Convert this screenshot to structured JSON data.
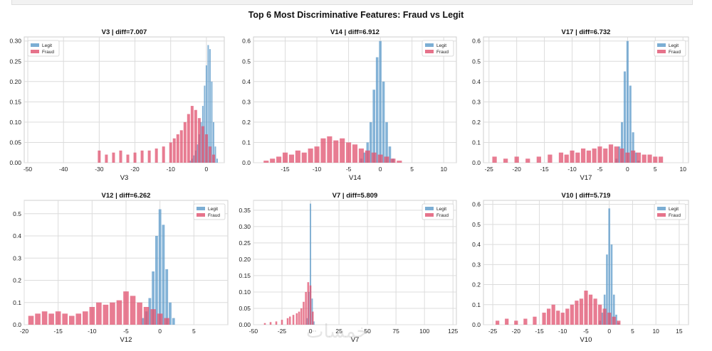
{
  "figure": {
    "suptitle": "Top 6 Most Discriminative Features: Fraud vs Legit",
    "colors": {
      "legit": "#5b9ac9",
      "fraud": "#e0506e"
    }
  },
  "chart_data": [
    {
      "type": "bar",
      "title": "V3  |  diff=7.007",
      "xlabel": "V3",
      "ylabel": "",
      "xlim": [
        -51,
        5
      ],
      "ylim": [
        0,
        0.31
      ],
      "xticks": [
        -50,
        -40,
        -30,
        -20,
        -10,
        0
      ],
      "yticks": [
        0,
        0.05,
        0.1,
        0.15,
        0.2,
        0.25,
        0.3
      ],
      "ytick_labels": [
        "0.00",
        "0.05",
        "0.10",
        "0.15",
        "0.20",
        "0.25",
        "0.30"
      ],
      "legend": [
        "Legit",
        "Fraud"
      ],
      "legend_loc": "upper-left",
      "series": [
        {
          "name": "Legit",
          "x": [
            -4.5,
            -4.0,
            -3.5,
            -3.0,
            -2.5,
            -2.0,
            -1.5,
            -1.0,
            -0.5,
            0.0,
            0.5,
            1.0,
            1.5,
            2.0,
            2.5,
            3.0
          ],
          "values": [
            0.005,
            0.01,
            0.018,
            0.03,
            0.045,
            0.07,
            0.1,
            0.14,
            0.19,
            0.24,
            0.29,
            0.28,
            0.2,
            0.1,
            0.04,
            0.01
          ]
        },
        {
          "name": "Fraud",
          "x": [
            -30,
            -28,
            -26,
            -24,
            -22,
            -20,
            -18,
            -16,
            -14,
            -12,
            -10,
            -9,
            -8,
            -7,
            -6,
            -5,
            -4,
            -3,
            -2,
            -1,
            0,
            1,
            2
          ],
          "values": [
            0.03,
            0.02,
            0.025,
            0.03,
            0.02,
            0.025,
            0.03,
            0.03,
            0.035,
            0.04,
            0.05,
            0.06,
            0.07,
            0.08,
            0.1,
            0.12,
            0.14,
            0.13,
            0.11,
            0.09,
            0.07,
            0.04,
            0.02
          ]
        }
      ]
    },
    {
      "type": "bar",
      "title": "V14  |  diff=6.912",
      "xlabel": "V14",
      "ylabel": "",
      "xlim": [
        -20,
        12
      ],
      "ylim": [
        0,
        0.62
      ],
      "xticks": [
        -15,
        -10,
        -5,
        0,
        5,
        10
      ],
      "yticks": [
        0,
        0.1,
        0.2,
        0.3,
        0.4,
        0.5,
        0.6
      ],
      "ytick_labels": [
        "0.0",
        "0.1",
        "0.2",
        "0.3",
        "0.4",
        "0.5",
        "0.6"
      ],
      "legend": [
        "Legit",
        "Fraud"
      ],
      "legend_loc": "upper-right",
      "series": [
        {
          "name": "Legit",
          "x": [
            -3.0,
            -2.5,
            -2.0,
            -1.5,
            -1.0,
            -0.5,
            0.0,
            0.5,
            1.0,
            1.5,
            2.0
          ],
          "values": [
            0.02,
            0.05,
            0.1,
            0.2,
            0.36,
            0.52,
            0.6,
            0.4,
            0.2,
            0.08,
            0.02
          ]
        },
        {
          "name": "Fraud",
          "x": [
            -18,
            -17,
            -16,
            -15,
            -14,
            -13,
            -12,
            -11,
            -10,
            -9,
            -8,
            -7,
            -6,
            -5,
            -4,
            -3,
            -2,
            -1,
            0,
            1,
            2,
            3
          ],
          "values": [
            0.01,
            0.02,
            0.03,
            0.05,
            0.04,
            0.06,
            0.05,
            0.07,
            0.08,
            0.12,
            0.13,
            0.11,
            0.12,
            0.1,
            0.09,
            0.07,
            0.06,
            0.05,
            0.04,
            0.03,
            0.02,
            0.01
          ]
        }
      ]
    },
    {
      "type": "bar",
      "title": "V17  |  diff=6.732",
      "xlabel": "V17",
      "ylabel": "",
      "xlim": [
        -26,
        11
      ],
      "ylim": [
        0,
        0.62
      ],
      "xticks": [
        -25,
        -20,
        -15,
        -10,
        -5,
        0,
        5,
        10
      ],
      "yticks": [
        0,
        0.1,
        0.2,
        0.3,
        0.4,
        0.5,
        0.6
      ],
      "ytick_labels": [
        "0.0",
        "0.1",
        "0.2",
        "0.3",
        "0.4",
        "0.5",
        "0.6"
      ],
      "legend": [
        "Legit",
        "Fraud"
      ],
      "legend_loc": "upper-right",
      "series": [
        {
          "name": "Legit",
          "x": [
            -2.0,
            -1.5,
            -1.0,
            -0.5,
            0.0,
            0.5,
            1.0,
            1.5,
            2.0
          ],
          "values": [
            0.02,
            0.08,
            0.2,
            0.45,
            0.6,
            0.38,
            0.15,
            0.05,
            0.01
          ]
        },
        {
          "name": "Fraud",
          "x": [
            -24,
            -22,
            -20,
            -18,
            -16,
            -14,
            -12,
            -11,
            -10,
            -9,
            -8,
            -7,
            -6,
            -5,
            -4,
            -3,
            -2,
            -1,
            0,
            1,
            2,
            3,
            4,
            5,
            6
          ],
          "values": [
            0.03,
            0.02,
            0.03,
            0.02,
            0.03,
            0.04,
            0.05,
            0.04,
            0.06,
            0.05,
            0.07,
            0.06,
            0.07,
            0.08,
            0.07,
            0.09,
            0.08,
            0.07,
            0.05,
            0.06,
            0.05,
            0.04,
            0.04,
            0.03,
            0.03
          ]
        }
      ]
    },
    {
      "type": "bar",
      "title": "V12  |  diff=6.262",
      "xlabel": "V12",
      "ylabel": "",
      "xlim": [
        -20,
        10
      ],
      "ylim": [
        0,
        0.56
      ],
      "xticks": [
        -20,
        -15,
        -10,
        -5,
        0,
        5
      ],
      "yticks": [
        0,
        0.1,
        0.2,
        0.3,
        0.4,
        0.5
      ],
      "ytick_labels": [
        "0.0",
        "0.1",
        "0.2",
        "0.3",
        "0.4",
        "0.5"
      ],
      "legend": [
        "Legit",
        "Fraud"
      ],
      "legend_loc": "upper-right",
      "series": [
        {
          "name": "Legit",
          "x": [
            -2.5,
            -2.0,
            -1.5,
            -1.0,
            -0.5,
            0.0,
            0.5,
            1.0,
            1.5,
            2.0
          ],
          "values": [
            0.03,
            0.06,
            0.12,
            0.24,
            0.4,
            0.52,
            0.45,
            0.25,
            0.1,
            0.03
          ]
        },
        {
          "name": "Fraud",
          "x": [
            -19,
            -18,
            -17,
            -16,
            -15,
            -14,
            -13,
            -12,
            -11,
            -10,
            -9,
            -8,
            -7,
            -6,
            -5,
            -4,
            -3,
            -2,
            -1,
            0,
            1
          ],
          "values": [
            0.04,
            0.05,
            0.06,
            0.05,
            0.06,
            0.05,
            0.04,
            0.05,
            0.06,
            0.08,
            0.1,
            0.09,
            0.1,
            0.11,
            0.15,
            0.13,
            0.1,
            0.08,
            0.07,
            0.05,
            0.03
          ]
        }
      ]
    },
    {
      "type": "bar",
      "title": "V7  |  diff=5.809",
      "xlabel": "V7",
      "ylabel": "",
      "xlim": [
        -50,
        128
      ],
      "ylim": [
        0,
        0.38
      ],
      "xticks": [
        -50,
        -25,
        0,
        25,
        50,
        75,
        100,
        125
      ],
      "yticks": [
        0,
        0.05,
        0.1,
        0.15,
        0.2,
        0.25,
        0.3,
        0.35
      ],
      "ytick_labels": [
        "0.00",
        "0.05",
        "0.10",
        "0.15",
        "0.20",
        "0.25",
        "0.30",
        "0.35"
      ],
      "legend": [
        "Legit",
        "Fraud"
      ],
      "legend_loc": "upper-right",
      "series": [
        {
          "name": "Legit",
          "x": [
            -3,
            -1.5,
            0,
            1.5,
            3
          ],
          "values": [
            0.02,
            0.1,
            0.37,
            0.08,
            0.01
          ]
        },
        {
          "name": "Fraud",
          "x": [
            -40,
            -35,
            -30,
            -25,
            -20,
            -18,
            -15,
            -12,
            -10,
            -8,
            -6,
            -4,
            -2,
            0,
            2
          ],
          "values": [
            0.005,
            0.008,
            0.01,
            0.015,
            0.02,
            0.025,
            0.03,
            0.035,
            0.04,
            0.05,
            0.07,
            0.1,
            0.13,
            0.12,
            0.04
          ]
        }
      ]
    },
    {
      "type": "bar",
      "title": "V10  |  diff=5.719",
      "xlabel": "V10",
      "ylabel": "",
      "xlim": [
        -27,
        17
      ],
      "ylim": [
        0,
        0.62
      ],
      "xticks": [
        -25,
        -20,
        -15,
        -10,
        -5,
        0,
        5,
        10,
        15
      ],
      "yticks": [
        0,
        0.1,
        0.2,
        0.3,
        0.4,
        0.5,
        0.6
      ],
      "ytick_labels": [
        "0.0",
        "0.1",
        "0.2",
        "0.3",
        "0.4",
        "0.5",
        "0.6"
      ],
      "legend": [
        "Legit",
        "Fraud"
      ],
      "legend_loc": "upper-right",
      "series": [
        {
          "name": "Legit",
          "x": [
            -2.0,
            -1.5,
            -1.0,
            -0.5,
            0.0,
            0.5,
            1.0,
            1.5,
            2.0
          ],
          "values": [
            0.02,
            0.06,
            0.15,
            0.35,
            0.58,
            0.4,
            0.15,
            0.05,
            0.01
          ]
        },
        {
          "name": "Fraud",
          "x": [
            -24,
            -22,
            -20,
            -18,
            -16,
            -14,
            -13,
            -12,
            -11,
            -10,
            -9,
            -8,
            -7,
            -6,
            -5,
            -4,
            -3,
            -2,
            -1,
            0,
            1,
            2
          ],
          "values": [
            0.02,
            0.03,
            0.02,
            0.03,
            0.04,
            0.06,
            0.08,
            0.1,
            0.07,
            0.06,
            0.08,
            0.1,
            0.12,
            0.13,
            0.17,
            0.15,
            0.13,
            0.1,
            0.08,
            0.06,
            0.04,
            0.02
          ]
        }
      ]
    }
  ]
}
